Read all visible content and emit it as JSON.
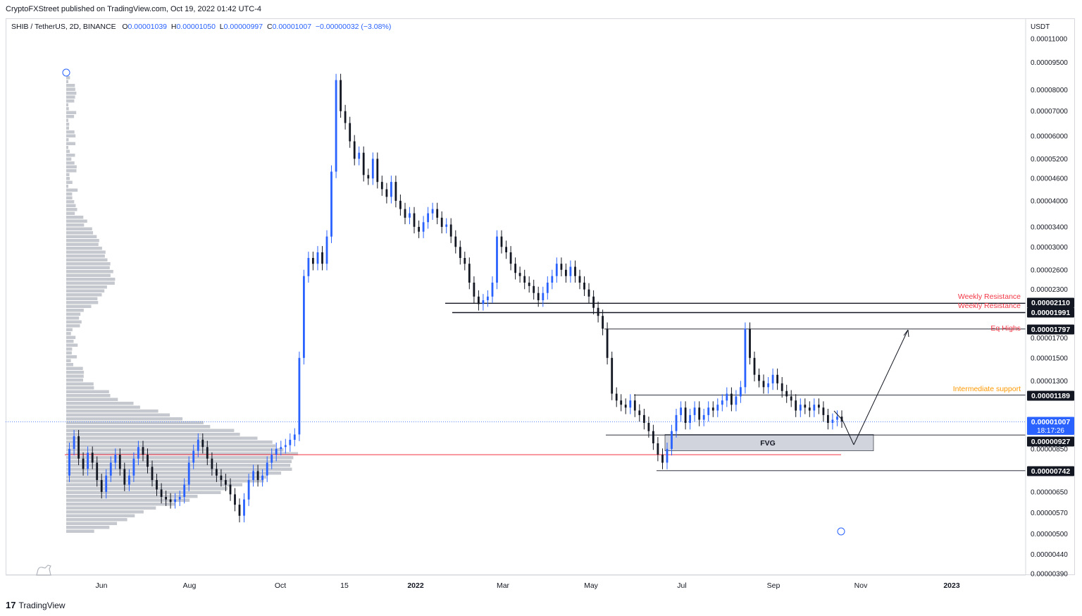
{
  "header": {
    "publisher_line": "CryptoFXStreet published on TradingView.com, Oct 19, 2022 01:42 UTC-4"
  },
  "legend": {
    "symbol": "SHIB / TetherUS, 2D, BINANCE",
    "o_label": "O",
    "o_value": "0.00001039",
    "h_label": "H",
    "h_value": "0.00001050",
    "l_label": "L",
    "l_value": "0.00000997",
    "c_label": "C",
    "c_value": "0.00001007",
    "change": "−0.00000032 (−3.08%)"
  },
  "footer": {
    "brand": "TradingView",
    "logo_glyph": "17"
  },
  "colors": {
    "up": "#2962ff",
    "down": "#131722",
    "resistance": "#f23645",
    "support": "#ff9800",
    "profile": "#b2b5be",
    "fvg": "#d1d4dc"
  },
  "chart_data": {
    "type": "candlestick",
    "symbol": "SHIB / TetherUS",
    "interval": "2D",
    "exchange": "BINANCE",
    "y_scale": "log",
    "y_unit": "USDT",
    "y_ticks": [
      "0.00011000",
      "0.00009500",
      "0.00008000",
      "0.00007000",
      "0.00006000",
      "0.00005200",
      "0.00004600",
      "0.00004000",
      "0.00003400",
      "0.00003000",
      "0.00002600",
      "0.00002300",
      "0.00001700",
      "0.00001500",
      "0.00001300",
      "0.00000850",
      "0.00000650",
      "0.00000570",
      "0.00000500",
      "0.00000440",
      "0.00000390"
    ],
    "x_ticks": [
      "Jun",
      "Aug",
      "Oct",
      "15",
      "2022",
      "Mar",
      "May",
      "Jul",
      "Sep",
      "Nov",
      "2023"
    ],
    "price_labels": [
      {
        "value": "0.00002110",
        "bg": "#131722"
      },
      {
        "value": "0.00001991",
        "bg": "#131722"
      },
      {
        "value": "0.00001797",
        "bg": "#131722"
      },
      {
        "value": "0.00001189",
        "bg": "#131722"
      },
      {
        "value": "0.00001007",
        "bg": "#2962ff"
      },
      {
        "value": "0.00000927",
        "bg": "#131722"
      },
      {
        "value": "0.00000742",
        "bg": "#131722"
      }
    ],
    "countdown": "18:17:26",
    "annotations": [
      {
        "text": "Weekly Resistance",
        "price": 2.11e-05,
        "color": "#f23645"
      },
      {
        "text": "Weekly Resistance",
        "price": 1.991e-05,
        "color": "#f23645"
      },
      {
        "text": "Eq Highs",
        "price": 1.797e-05,
        "color": "#f23645"
      },
      {
        "text": "Intermediate support",
        "price": 1.189e-05,
        "color": "#ff9800"
      },
      {
        "text": "FVG",
        "price": 8.8e-06,
        "color": "#131722"
      }
    ],
    "levels": [
      2.11e-05,
      1.991e-05,
      1.797e-05,
      1.189e-05,
      9.27e-06,
      7.42e-06
    ],
    "fvg_zone": [
      8.4e-06,
      9.3e-06
    ],
    "current_price": 1.007e-05,
    "point_of_control": 8.2e-06,
    "ohlc_last": {
      "open": 1.039e-05,
      "high": 1.05e-05,
      "low": 9.97e-06,
      "close": 1.007e-05
    },
    "price_path": [
      7.2e-06,
      8.5e-06,
      9.2e-06,
      8e-06,
      7.5e-06,
      8.3e-06,
      7.8e-06,
      7e-06,
      6.5e-06,
      7.2e-06,
      7.8e-06,
      8.2e-06,
      7.5e-06,
      6.8e-06,
      7.2e-06,
      8e-06,
      8.6e-06,
      8.2e-06,
      7.6e-06,
      7e-06,
      6.6e-06,
      6.3e-06,
      6.2e-06,
      6.1e-06,
      6.2e-06,
      6.3e-06,
      6.8e-06,
      7.8e-06,
      8.4e-06,
      9e-06,
      8.6e-06,
      8e-06,
      7.5e-06,
      7.2e-06,
      7e-06,
      6.8e-06,
      6.4e-06,
      6e-06,
      5.6e-06,
      6.2e-06,
      7e-06,
      7.4e-06,
      7e-06,
      7.2e-06,
      7.8e-06,
      8.2e-06,
      8.5e-06,
      8.6e-06,
      8.7e-06,
      9e-06,
      9.3e-06,
      1.5e-05,
      2.5e-05,
      2.8e-05,
      2.7e-05,
      2.9e-05,
      2.7e-05,
      3.2e-05,
      4.8e-05,
      8.5e-05,
      7e-05,
      6.5e-05,
      5.8e-05,
      5.2e-05,
      5.4e-05,
      4.7e-05,
      4.6e-05,
      5.2e-05,
      4.5e-05,
      4.3e-05,
      4.1e-05,
      4.5e-05,
      4e-05,
      3.8e-05,
      3.6e-05,
      3.7e-05,
      3.4e-05,
      3.3e-05,
      3.5e-05,
      3.7e-05,
      3.8e-05,
      3.6e-05,
      3.4e-05,
      3.45e-05,
      3.2e-05,
      3e-05,
      2.8e-05,
      2.7e-05,
      2.4e-05,
      2.2e-05,
      2.1e-05,
      2.15e-05,
      2.2e-05,
      2.4e-05,
      3.2e-05,
      3e-05,
      2.9e-05,
      2.7e-05,
      2.55e-05,
      2.5e-05,
      2.4e-05,
      2.35e-05,
      2.25e-05,
      2.15e-05,
      2.25e-05,
      2.4e-05,
      2.5e-05,
      2.7e-05,
      2.6e-05,
      2.5e-05,
      2.65e-05,
      2.5e-05,
      2.4e-05,
      2.3e-05,
      2.2e-05,
      2.05e-05,
      1.95e-05,
      1.8e-05,
      1.5e-05,
      1.2e-05,
      1.15e-05,
      1.12e-05,
      1.1e-05,
      1.15e-05,
      1.08e-05,
      1.05e-05,
      1e-05,
      9.5e-06,
      8.8e-06,
      8.2e-06,
      7.8e-06,
      8.5e-06,
      9.5e-06,
      1.05e-05,
      1.1e-05,
      1e-05,
      1.05e-05,
      1.1e-05,
      1.02e-05,
      1.05e-05,
      1.1e-05,
      1.08e-05,
      1.12e-05,
      1.15e-05,
      1.2e-05,
      1.12e-05,
      1.18e-05,
      1.25e-05,
      1.8e-05,
      1.5e-05,
      1.35e-05,
      1.3e-05,
      1.25e-05,
      1.28e-05,
      1.35e-05,
      1.28e-05,
      1.22e-05,
      1.18e-05,
      1.15e-05,
      1.08e-05,
      1.12e-05,
      1.1e-05,
      1.08e-05,
      1.12e-05,
      1.1e-05,
      1.05e-05,
      1e-05,
      1.02e-05,
      1.04e-05,
      1.01e-05
    ]
  }
}
